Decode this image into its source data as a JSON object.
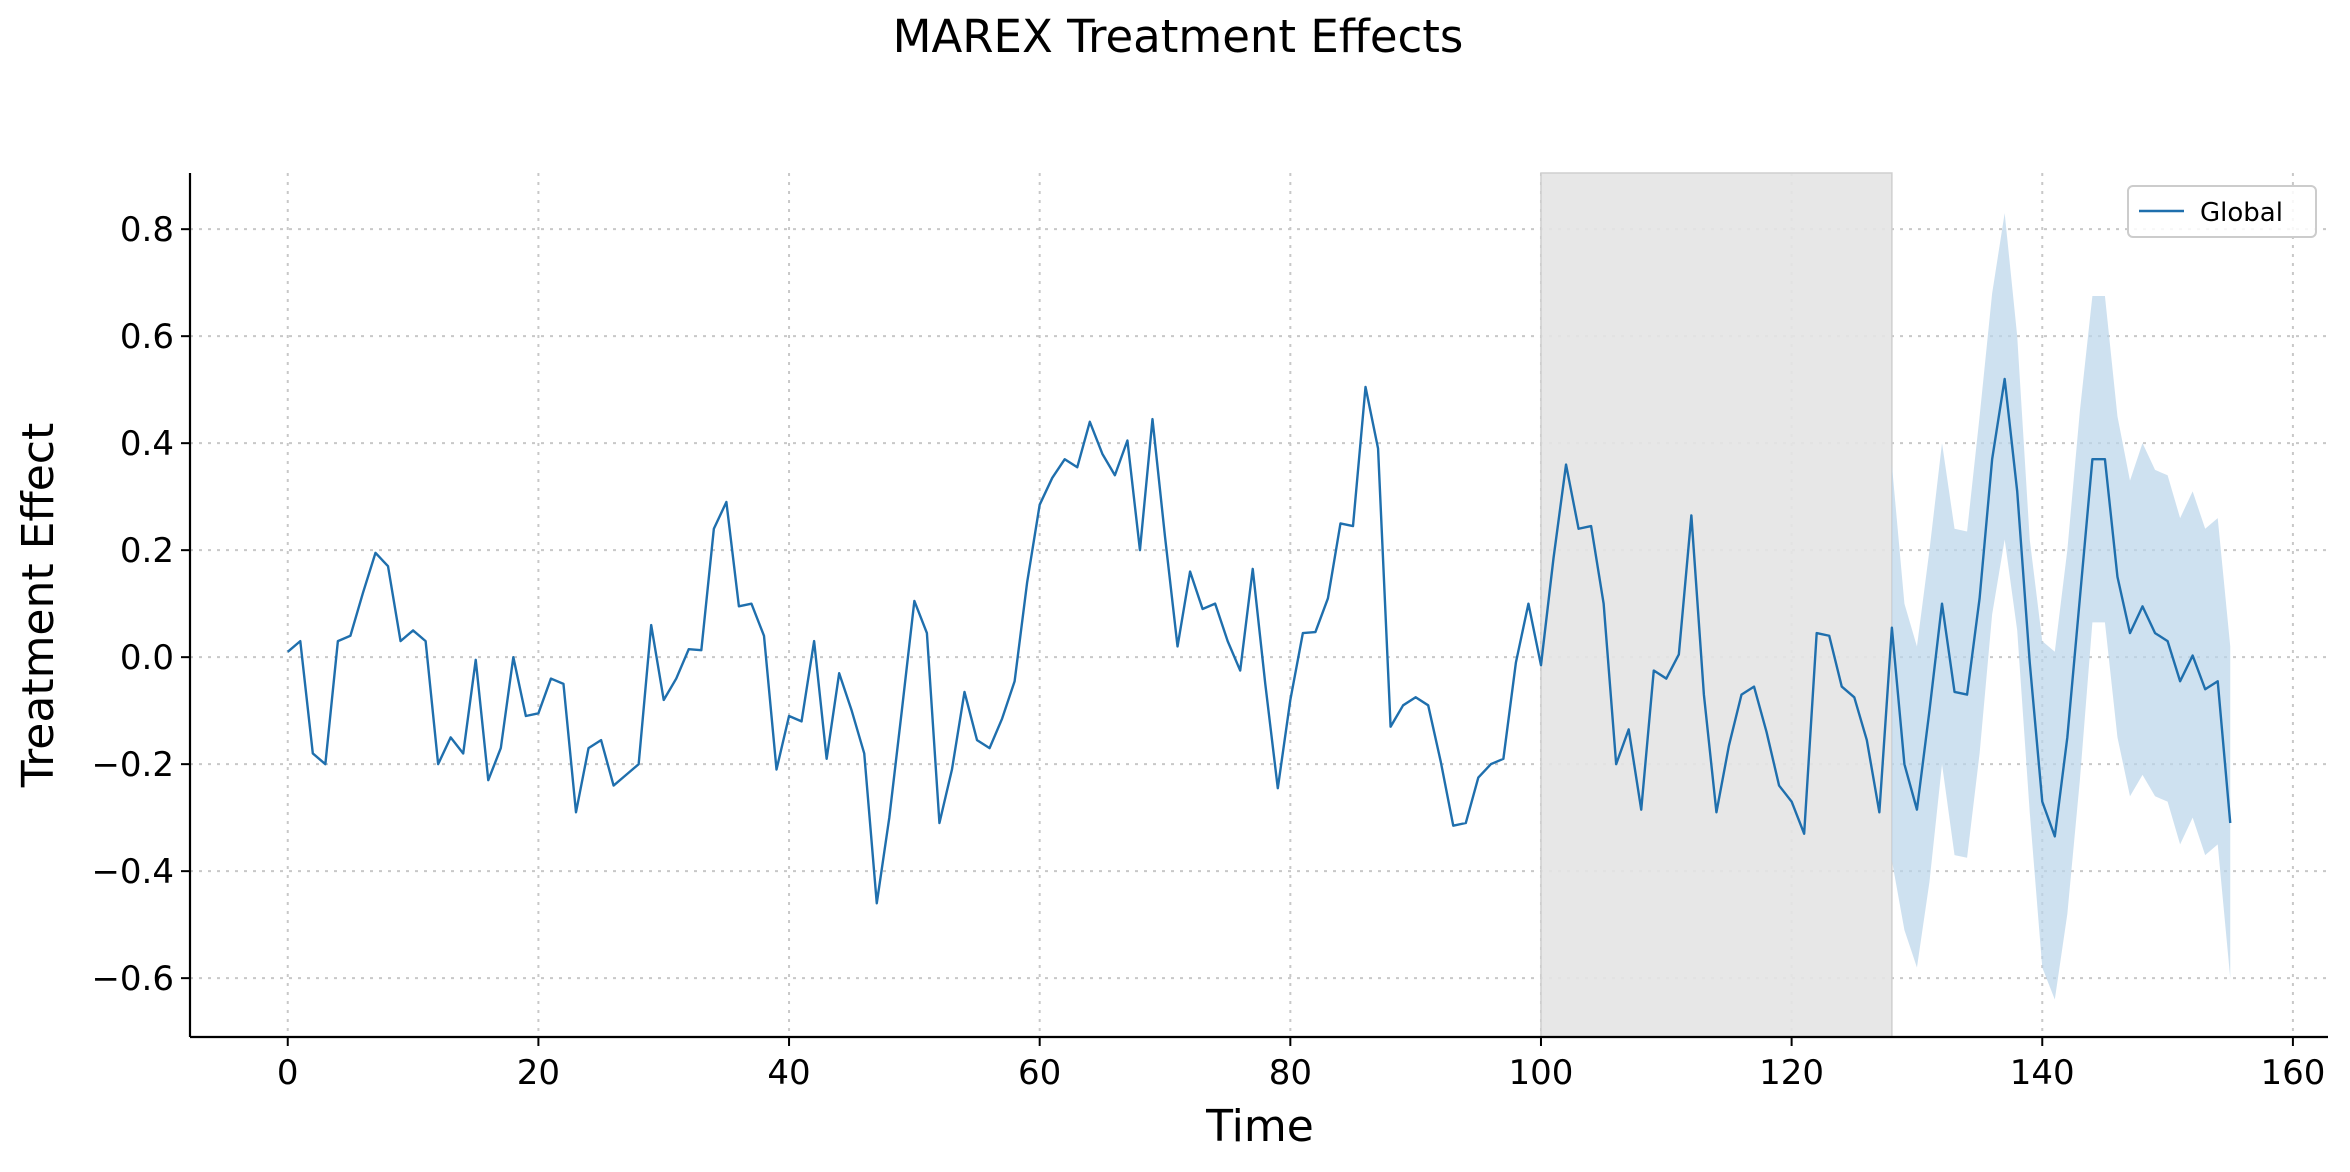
{
  "chart_data": {
    "type": "line",
    "title": "MAREX Treatment Effects",
    "xlabel": "Time",
    "ylabel": "Treatment Effect",
    "xlim": [
      -7.8,
      162.8
    ],
    "ylim": [
      -0.71,
      0.905
    ],
    "x_ticks": [
      0,
      20,
      40,
      60,
      80,
      100,
      120,
      140,
      160
    ],
    "y_ticks": [
      -0.6,
      -0.4,
      -0.2,
      0.0,
      0.2,
      0.4,
      0.6,
      0.8
    ],
    "x_tick_labels": [
      "0",
      "20",
      "40",
      "60",
      "80",
      "100",
      "120",
      "140",
      "160"
    ],
    "y_tick_labels": [
      "−0.6",
      "−0.4",
      "−0.2",
      "0.0",
      "0.2",
      "0.4",
      "0.6",
      "0.8"
    ],
    "grid": true,
    "legend_position": "top-right",
    "shaded_region": {
      "x_start": 100,
      "x_end": 128,
      "color": "#e4e4e4"
    },
    "colors": {
      "line": "#1f6fad",
      "band": "#b9d4ea"
    },
    "series": [
      {
        "name": "Global",
        "x_start": 0,
        "values": [
          0.01,
          0.03,
          -0.18,
          -0.2,
          0.03,
          0.04,
          0.12,
          0.195,
          0.17,
          0.03,
          0.05,
          0.03,
          -0.2,
          -0.15,
          -0.18,
          -0.005,
          -0.23,
          -0.17,
          0.0,
          -0.11,
          -0.105,
          -0.04,
          -0.05,
          -0.29,
          -0.17,
          -0.155,
          -0.24,
          -0.22,
          -0.2,
          0.06,
          -0.08,
          -0.04,
          0.015,
          0.013,
          0.24,
          0.29,
          0.095,
          0.1,
          0.04,
          -0.21,
          -0.11,
          -0.12,
          0.03,
          -0.19,
          -0.03,
          -0.1,
          -0.18,
          -0.46,
          -0.3,
          -0.1,
          0.105,
          0.045,
          -0.31,
          -0.21,
          -0.065,
          -0.155,
          -0.17,
          -0.115,
          -0.045,
          0.14,
          0.285,
          0.335,
          0.37,
          0.355,
          0.44,
          0.38,
          0.34,
          0.405,
          0.2,
          0.445,
          0.225,
          0.02,
          0.16,
          0.09,
          0.1,
          0.03,
          -0.025,
          0.165,
          -0.05,
          -0.245,
          -0.08,
          0.045,
          0.047,
          0.11,
          0.25,
          0.245,
          0.505,
          0.39,
          -0.13,
          -0.09,
          -0.075,
          -0.09,
          -0.195,
          -0.315,
          -0.31,
          -0.225,
          -0.2,
          -0.19,
          -0.01,
          0.1,
          -0.015,
          0.185,
          0.36,
          0.24,
          0.245,
          0.1,
          -0.2,
          -0.135,
          -0.285,
          -0.025,
          -0.04,
          0.005,
          0.265,
          -0.07,
          -0.29,
          -0.165,
          -0.07,
          -0.055,
          -0.14,
          -0.24,
          -0.27,
          -0.33,
          0.045,
          0.04,
          -0.055,
          -0.075,
          -0.155,
          -0.29,
          0.055,
          -0.2,
          -0.285,
          -0.1,
          0.1,
          -0.065,
          -0.07,
          0.11,
          0.37,
          0.52,
          0.31,
          -0.01,
          -0.27,
          -0.335,
          -0.15,
          0.11,
          0.37,
          0.37,
          0.15,
          0.045,
          0.095,
          0.045,
          0.03,
          -0.045,
          0.003,
          -0.06,
          -0.045,
          -0.31
        ],
        "band": {
          "x": [
            128,
            129,
            130,
            131,
            132,
            133,
            134,
            135,
            136,
            137,
            138,
            139,
            140,
            141,
            142,
            143,
            144,
            145,
            146,
            147,
            148,
            149,
            150,
            151,
            152,
            153,
            154,
            155
          ],
          "upper": [
            0.36,
            0.1,
            0.02,
            0.2,
            0.4,
            0.24,
            0.235,
            0.45,
            0.68,
            0.83,
            0.6,
            0.22,
            0.03,
            0.01,
            0.2,
            0.46,
            0.675,
            0.675,
            0.45,
            0.33,
            0.4,
            0.35,
            0.34,
            0.26,
            0.31,
            0.24,
            0.26,
            0.02
          ],
          "lower": [
            -0.38,
            -0.51,
            -0.58,
            -0.42,
            -0.2,
            -0.37,
            -0.375,
            -0.18,
            0.08,
            0.22,
            0.05,
            -0.29,
            -0.58,
            -0.64,
            -0.48,
            -0.23,
            0.065,
            0.065,
            -0.15,
            -0.26,
            -0.22,
            -0.26,
            -0.27,
            -0.35,
            -0.3,
            -0.37,
            -0.35,
            -0.6
          ]
        }
      }
    ]
  }
}
